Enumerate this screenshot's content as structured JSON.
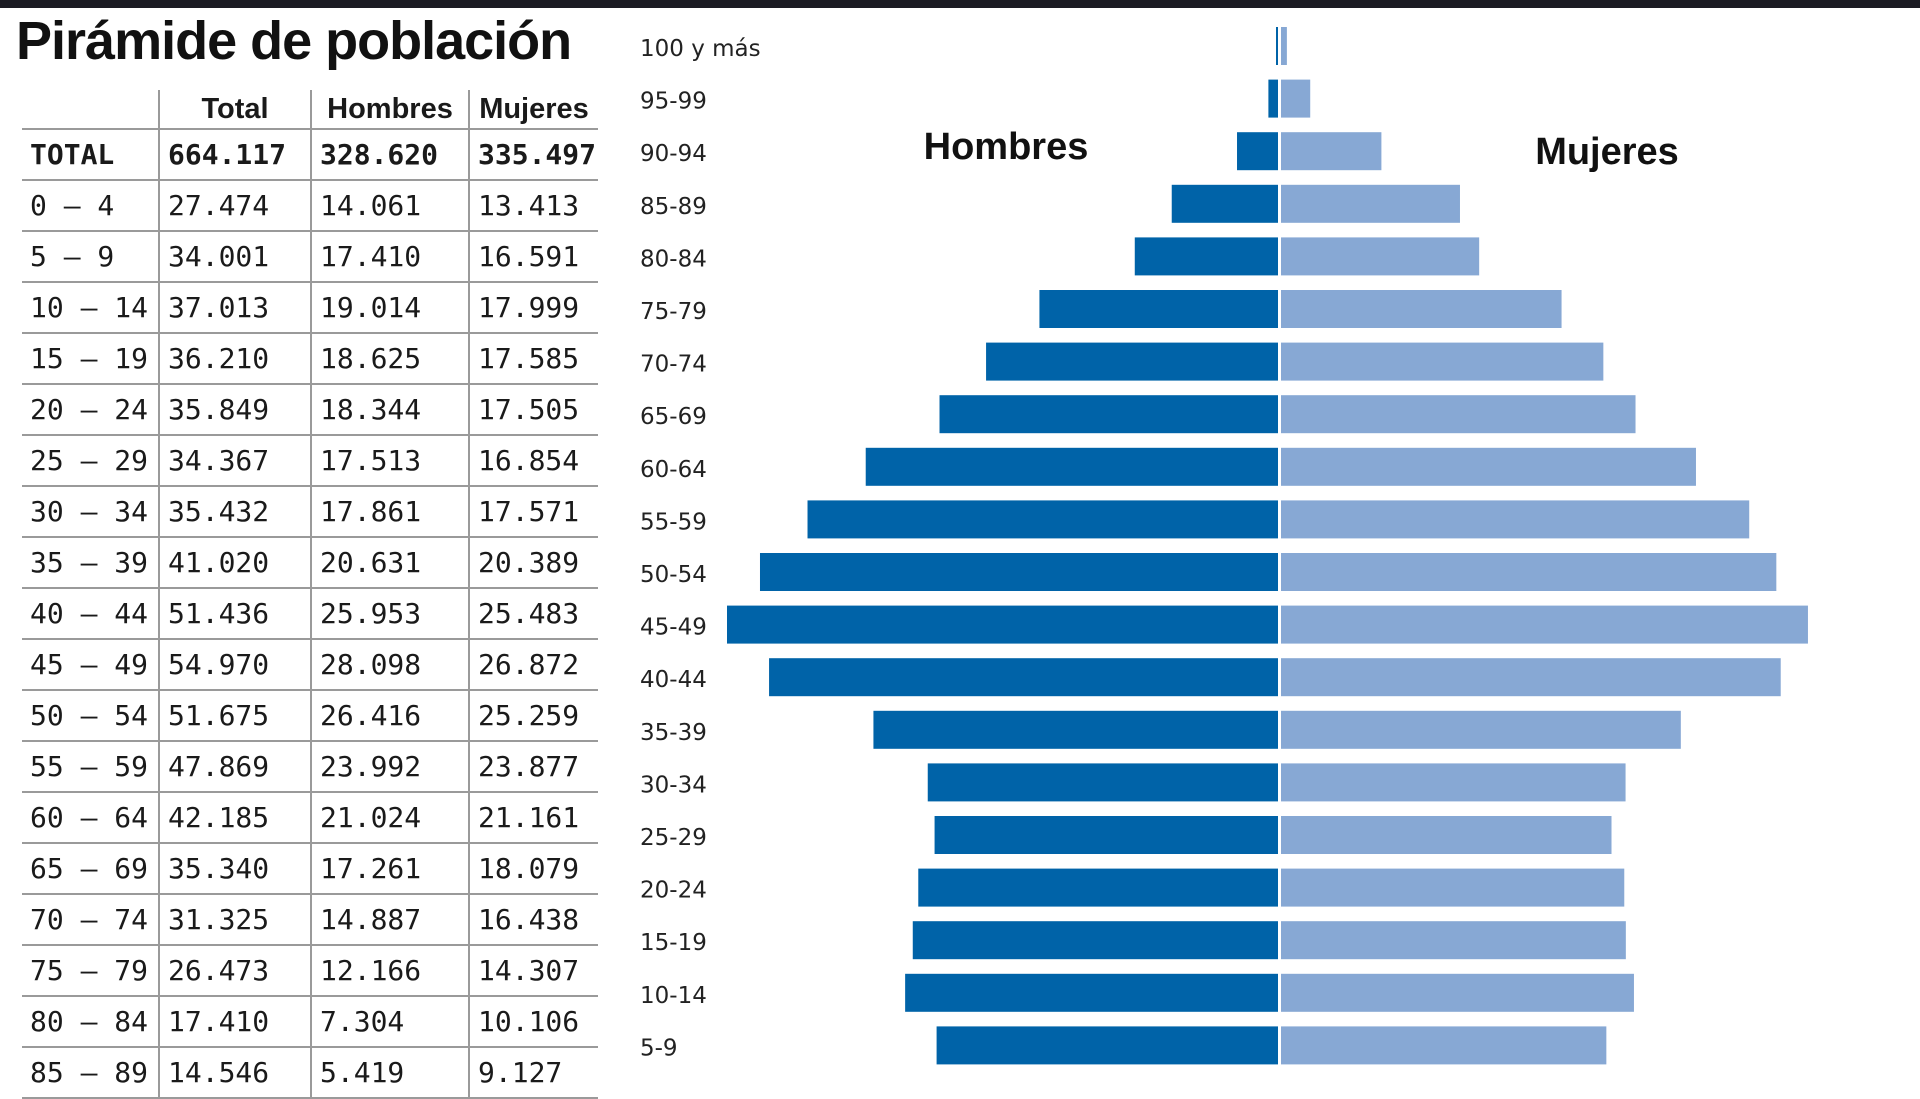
{
  "title": "Pirámide de población",
  "table": {
    "headers": [
      "",
      "Total",
      "Hombres",
      "Mujeres"
    ],
    "total_row": [
      "TOTAL",
      "664.117",
      "328.620",
      "335.497"
    ],
    "rows": [
      [
        "0 – 4",
        "27.474",
        "14.061",
        "13.413"
      ],
      [
        "5 – 9",
        "34.001",
        "17.410",
        "16.591"
      ],
      [
        "10 – 14",
        "37.013",
        "19.014",
        "17.999"
      ],
      [
        "15 – 19",
        "36.210",
        "18.625",
        "17.585"
      ],
      [
        "20 – 24",
        "35.849",
        "18.344",
        "17.505"
      ],
      [
        "25 – 29",
        "34.367",
        "17.513",
        "16.854"
      ],
      [
        "30 – 34",
        "35.432",
        "17.861",
        "17.571"
      ],
      [
        "35 – 39",
        "41.020",
        "20.631",
        "20.389"
      ],
      [
        "40 – 44",
        "51.436",
        "25.953",
        "25.483"
      ],
      [
        "45 – 49",
        "54.970",
        "28.098",
        "26.872"
      ],
      [
        "50 – 54",
        "51.675",
        "26.416",
        "25.259"
      ],
      [
        "55 – 59",
        "47.869",
        "23.992",
        "23.877"
      ],
      [
        "60 – 64",
        "42.185",
        "21.024",
        "21.161"
      ],
      [
        "65 – 69",
        "35.340",
        "17.261",
        "18.079"
      ],
      [
        "70 – 74",
        "31.325",
        "14.887",
        "16.438"
      ],
      [
        "75 – 79",
        "26.473",
        "12.166",
        "14.307"
      ],
      [
        "80 – 84",
        "17.410",
        "7.304",
        "10.106"
      ],
      [
        "85 – 89",
        "14.546",
        "5.419",
        "9.127"
      ]
    ]
  },
  "chart_data": {
    "type": "bar",
    "orientation": "horizontal-pyramid",
    "categories": [
      "100 y más",
      "95-99",
      "90-94",
      "85-89",
      "80-84",
      "75-79",
      "70-74",
      "65-69",
      "60-64",
      "55-59",
      "50-54",
      "45-49",
      "40-44",
      "35-39",
      "30-34",
      "25-29",
      "20-24",
      "15-19",
      "10-14",
      "5-9"
    ],
    "series": [
      {
        "name": "Hombres",
        "color": "#0063a8",
        "values": [
          50,
          490,
          2090,
          5419,
          7304,
          12166,
          14887,
          17261,
          21024,
          23992,
          26416,
          28098,
          25953,
          20631,
          17861,
          17513,
          18344,
          18625,
          19014,
          17410
        ]
      },
      {
        "name": "Mujeres",
        "color": "#87a8d4",
        "values": [
          300,
          1490,
          5120,
          9127,
          10106,
          14307,
          16438,
          18079,
          21161,
          23877,
          25259,
          26872,
          25483,
          20389,
          17571,
          16854,
          17505,
          17585,
          17999,
          16591
        ]
      }
    ],
    "legend": [
      "Hombres",
      "Mujeres"
    ]
  }
}
